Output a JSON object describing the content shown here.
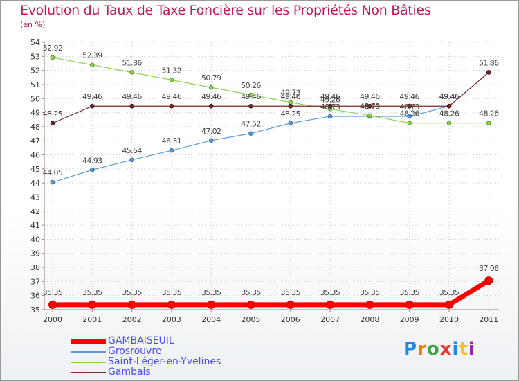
{
  "header": {
    "title": "Evolution du Taux de Taxe Foncière sur les Propriétés Non Bâties",
    "unit": "(en %)"
  },
  "logo": {
    "text": "Proxiti",
    "colors": [
      "#1e88e5",
      "#f57c00",
      "#43a047",
      "#e53935",
      "#1e88e5",
      "#fbc02d",
      "#8e24aa"
    ]
  },
  "chart_data": {
    "type": "line",
    "title": "Evolution du Taux de Taxe Foncière sur les Propriétés Non Bâties",
    "ylabel": "(en %)",
    "x": [
      "2000",
      "2001",
      "2002",
      "2003",
      "2004",
      "2005",
      "2006",
      "2007",
      "2008",
      "2009",
      "2010",
      "2011"
    ],
    "ylim": [
      35,
      54
    ],
    "yticks": [
      "35",
      "36",
      "37",
      "38",
      "39",
      "40",
      "41",
      "42",
      "43",
      "44",
      "45",
      "46",
      "47",
      "48",
      "49",
      "50",
      "51",
      "52",
      "53",
      "54"
    ],
    "grid": true,
    "legend_position": "bottom-left",
    "series": [
      {
        "name": "GAMBAISEUIL",
        "color": "#ff0000",
        "width": 7,
        "marker": 7,
        "values": [
          35.35,
          35.35,
          35.35,
          35.35,
          35.35,
          35.35,
          35.35,
          35.35,
          35.35,
          35.35,
          35.35,
          37.06
        ],
        "labels": [
          "35.35",
          "35.35",
          "35.35",
          "35.35",
          "35.35",
          "35.35",
          "35.35",
          "35.35",
          "35.35",
          "35.35",
          "35.35",
          "37.06"
        ]
      },
      {
        "name": "Grosrouvre",
        "color": "#5b9bd5",
        "width": 1.2,
        "marker": 3,
        "values": [
          44.05,
          44.93,
          45.64,
          46.31,
          47.02,
          47.52,
          48.25,
          48.73,
          48.73,
          48.73,
          49.46,
          51.86
        ],
        "labels": [
          "44.05",
          "44.93",
          "45.64",
          "46.31",
          "47.02",
          "47.52",
          "48.25",
          "48.73",
          "48.73",
          "48.73",
          "49.46",
          "51.86"
        ]
      },
      {
        "name": "Saint-Léger-en-Yvelines",
        "color": "#8fd14f",
        "width": 1.2,
        "marker": 3,
        "values": [
          52.92,
          52.39,
          51.86,
          51.32,
          50.79,
          50.26,
          49.73,
          49.26,
          48.79,
          48.26,
          48.26,
          48.26
        ],
        "labels": [
          "52.92",
          "52.39",
          "51.86",
          "51.32",
          "50.79",
          "50.26",
          "49.73",
          "49.26",
          "48.79",
          "48.26",
          "48.26",
          "48.26"
        ]
      },
      {
        "name": "Gambais",
        "color": "#7a2a2a",
        "width": 1.2,
        "marker": 3,
        "values": [
          48.25,
          49.46,
          49.46,
          49.46,
          49.46,
          49.46,
          49.46,
          49.46,
          49.46,
          49.46,
          49.46,
          51.86
        ],
        "labels": [
          "48.25",
          "49.46",
          "49.46",
          "49.46",
          "49.46",
          "49.46",
          "49.46",
          "49.46",
          "49.46",
          "49.46",
          "49.46",
          "51.86"
        ]
      }
    ]
  }
}
